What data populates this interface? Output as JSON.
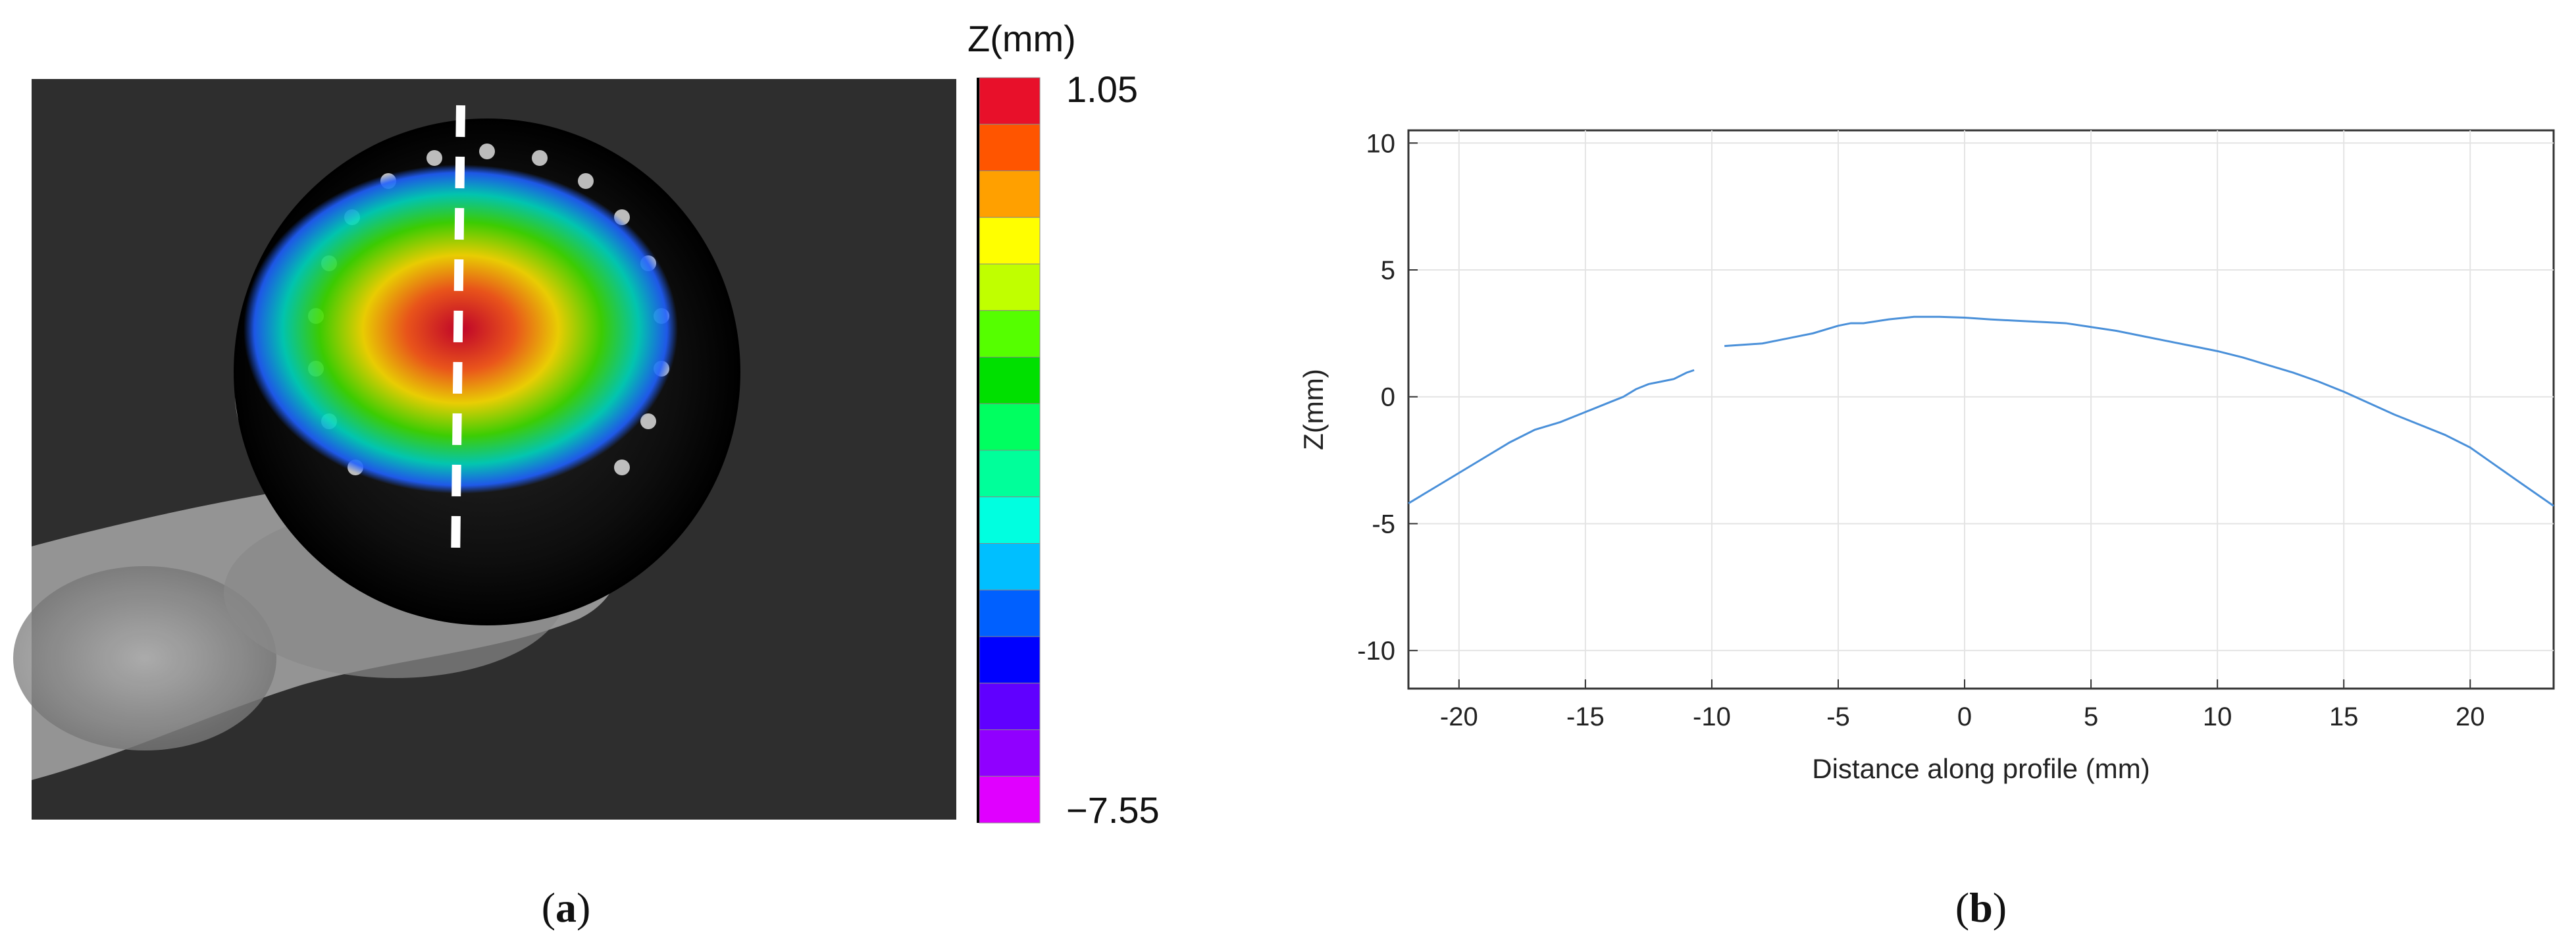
{
  "panels": [
    {
      "label_open": "(",
      "label_letter": "a",
      "label_close": ")"
    },
    {
      "label_open": "(",
      "label_letter": "b",
      "label_close": ")"
    }
  ],
  "colorbar": {
    "title": "Z(mm)",
    "max_label": "1.05",
    "min_label": "−7.55",
    "colors": [
      "#e8102a",
      "#ff5500",
      "#ffa000",
      "#ffff00",
      "#c0ff00",
      "#55ff00",
      "#00e000",
      "#00ff60",
      "#00ff9a",
      "#00ffe0",
      "#00bfff",
      "#0060ff",
      "#0000ff",
      "#6000ff",
      "#9000ff",
      "#e000ff"
    ]
  },
  "chart_data": {
    "type": "line",
    "title": "",
    "xlabel": "Distance along profile (mm)",
    "ylabel": "Z(mm)",
    "xlim": [
      -22,
      23.3
    ],
    "ylim": [
      -11.5,
      10.5
    ],
    "xticks": [
      -20,
      -15,
      -10,
      -5,
      0,
      5,
      10,
      15,
      20
    ],
    "yticks": [
      -10,
      -5,
      0,
      5,
      10
    ],
    "grid": true,
    "line_color": "#4a90d9",
    "series": [
      {
        "x": [
          -22,
          -21,
          -20,
          -19,
          -18,
          -17,
          -16.5,
          -16,
          -15,
          -14,
          -13.5,
          -13,
          -12.5,
          -12,
          -11.5,
          -11,
          -10.7
        ],
        "y": [
          -4.2,
          -3.6,
          -3.0,
          -2.4,
          -1.8,
          -1.3,
          -1.15,
          -1.0,
          -0.6,
          -0.2,
          0.0,
          0.3,
          0.5,
          0.6,
          0.7,
          0.95,
          1.05
        ]
      },
      {
        "x": [
          -9.5,
          -8,
          -7,
          -6,
          -5,
          -4.5,
          -4,
          -3,
          -2,
          -1,
          0,
          1,
          2,
          3,
          4,
          5,
          6,
          7,
          8,
          9,
          10,
          11,
          12,
          13,
          14,
          15,
          16,
          17,
          18,
          19,
          20,
          21,
          22,
          23.3
        ],
        "y": [
          2.0,
          2.1,
          2.3,
          2.5,
          2.8,
          2.9,
          2.9,
          3.05,
          3.15,
          3.15,
          3.12,
          3.05,
          3.0,
          2.95,
          2.9,
          2.75,
          2.6,
          2.4,
          2.2,
          2.0,
          1.8,
          1.55,
          1.25,
          0.95,
          0.6,
          0.2,
          -0.25,
          -0.7,
          -1.1,
          -1.5,
          -2.0,
          -2.7,
          -3.4,
          -4.3
        ]
      }
    ]
  }
}
